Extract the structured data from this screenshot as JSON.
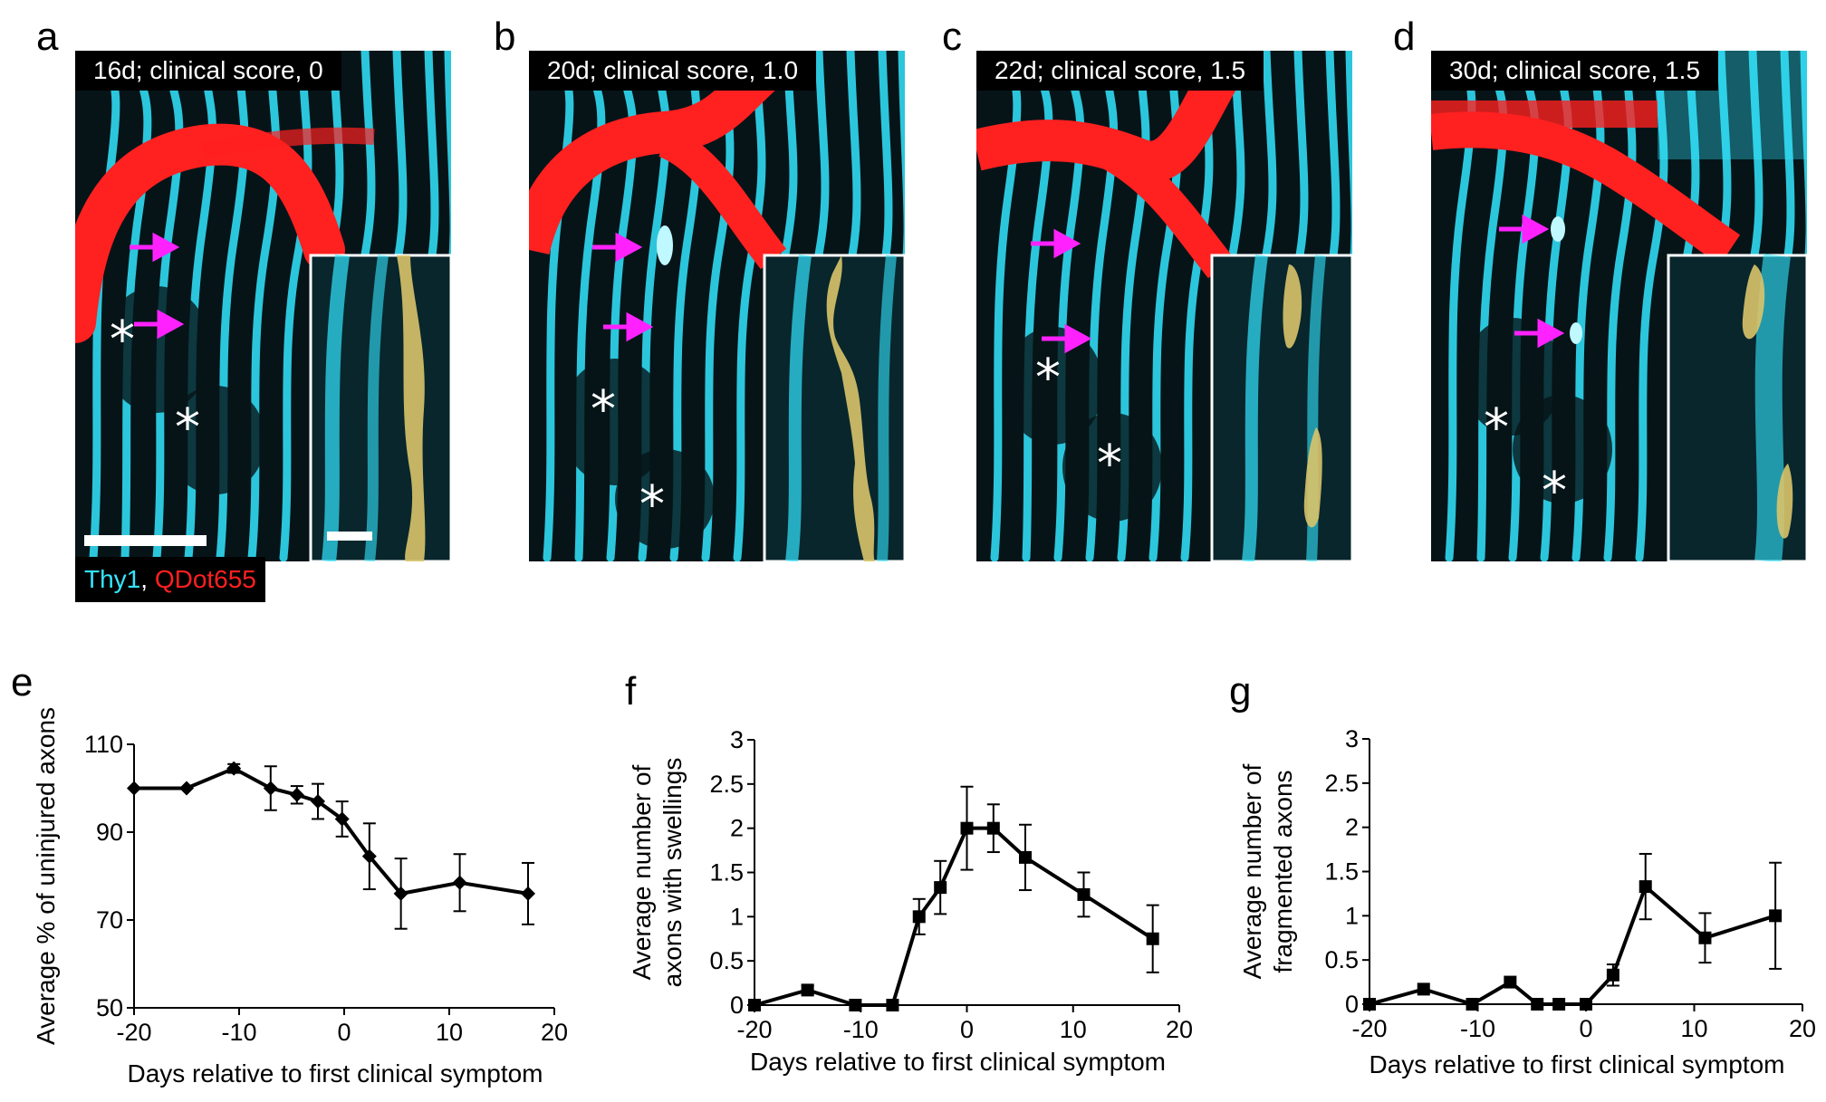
{
  "panels": [
    {
      "letter": "a",
      "label": "16d; clinical score, 0"
    },
    {
      "letter": "b",
      "label": "20d; clinical score, 1.0"
    },
    {
      "letter": "c",
      "label": "22d; clinical score, 1.5"
    },
    {
      "letter": "d",
      "label": "30d; clinical score, 1.5"
    }
  ],
  "legend": {
    "channel1": "Thy1",
    "separator": ",",
    "channel2": "QDot655"
  },
  "colors": {
    "axon": "#33e6ff",
    "vessel": "#ff2020",
    "arrow": "#ff22ff",
    "overlay": "#d9c46a"
  },
  "chart_data": [
    {
      "letter": "e",
      "type": "line",
      "title": "",
      "xlabel": "Days relative to first clinical symptom",
      "ylabel": "Average % of uninjured axons",
      "xlim": [
        -20,
        20
      ],
      "ylim": [
        50,
        110
      ],
      "xticks": [
        -20,
        -10,
        0,
        10,
        20
      ],
      "yticks": [
        50,
        70,
        90,
        110
      ],
      "marker": "diamond",
      "x": [
        -20,
        -15,
        -10.5,
        -7,
        -4.5,
        -2.5,
        -0.2,
        2.4,
        5.4,
        11,
        17.5
      ],
      "y": [
        100,
        100,
        104.5,
        100,
        98.5,
        97,
        93,
        84.5,
        76,
        78.5,
        76
      ],
      "err": [
        0,
        0,
        1,
        5,
        2,
        4,
        4,
        7.5,
        8,
        6.5,
        7
      ]
    },
    {
      "letter": "f",
      "type": "line",
      "title": "",
      "xlabel": "Days relative to first clinical symptom",
      "ylabel": "Average number of axons with swellings",
      "ylabel_lines": [
        "Average number of",
        "axons with swellings"
      ],
      "xlim": [
        -20,
        20
      ],
      "ylim": [
        0,
        3
      ],
      "xticks": [
        -20,
        -10,
        0,
        10,
        20
      ],
      "yticks": [
        0,
        0.5,
        1,
        1.5,
        2,
        2.5,
        3
      ],
      "marker": "square",
      "x": [
        -20,
        -15,
        -10.5,
        -7,
        -4.5,
        -2.5,
        0,
        2.5,
        5.5,
        11,
        17.5
      ],
      "y": [
        0,
        0.17,
        0,
        0,
        1,
        1.33,
        2,
        2,
        1.67,
        1.25,
        0.75
      ],
      "err": [
        0,
        0.05,
        0,
        0,
        0.2,
        0.3,
        0.47,
        0.27,
        0.37,
        0.25,
        0.38
      ]
    },
    {
      "letter": "g",
      "type": "line",
      "title": "",
      "xlabel": "Days relative to first clinical symptom",
      "ylabel": "Average number of fragmented axons",
      "ylabel_lines": [
        "Average number of",
        "fragmented axons"
      ],
      "xlim": [
        -20,
        20
      ],
      "ylim": [
        0,
        3
      ],
      "xticks": [
        -20,
        -10,
        0,
        10,
        20
      ],
      "yticks": [
        0,
        0.5,
        1,
        1.5,
        2,
        2.5,
        3
      ],
      "marker": "square",
      "x": [
        -20,
        -15,
        -10.5,
        -7,
        -4.5,
        -2.5,
        0,
        2.5,
        5.5,
        11,
        17.5
      ],
      "y": [
        0,
        0.17,
        0,
        0.25,
        0,
        0,
        0,
        0.33,
        1.33,
        0.75,
        1
      ],
      "err": [
        0,
        0,
        0,
        0,
        0,
        0,
        0,
        0.12,
        0.37,
        0.28,
        0.6
      ]
    }
  ]
}
